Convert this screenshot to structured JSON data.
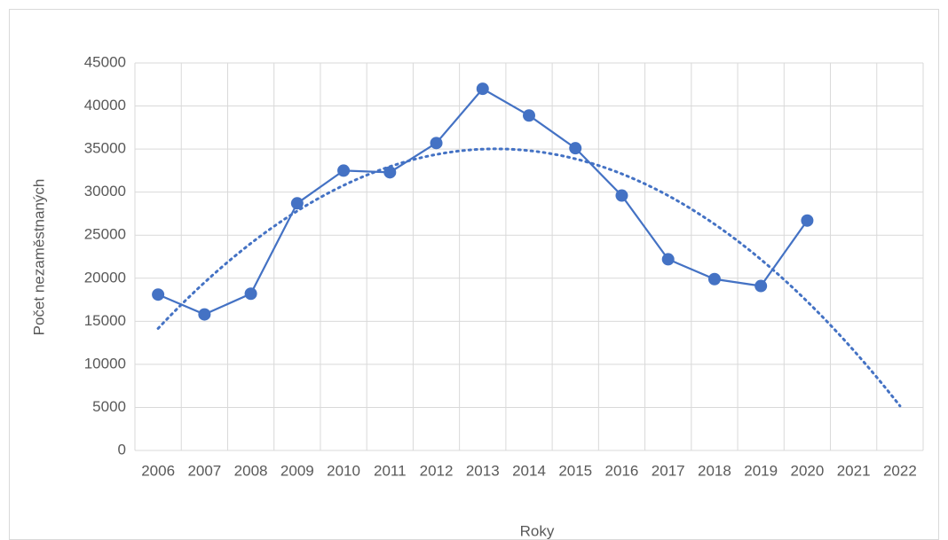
{
  "chart_data": {
    "type": "line",
    "categories": [
      "2006",
      "2007",
      "2008",
      "2009",
      "2010",
      "2011",
      "2012",
      "2013",
      "2014",
      "2015",
      "2016",
      "2017",
      "2018",
      "2019",
      "2020",
      "2021",
      "2022"
    ],
    "series": [
      {
        "name": "Počet nezaměstnaných",
        "color": "#4472c4",
        "values": [
          18100,
          15800,
          18200,
          28700,
          32500,
          32300,
          35700,
          42000,
          38900,
          35100,
          29600,
          22200,
          19900,
          19100,
          26700,
          null,
          null
        ]
      }
    ],
    "ylim": [
      0,
      45000
    ],
    "yticks": [
      0,
      5000,
      10000,
      15000,
      20000,
      25000,
      30000,
      35000,
      40000,
      45000
    ],
    "y_label": "Počet nezaměstnaných",
    "x_label": "Roky",
    "grid": true,
    "trendline": {
      "order": 2,
      "style": "dotted"
    }
  }
}
